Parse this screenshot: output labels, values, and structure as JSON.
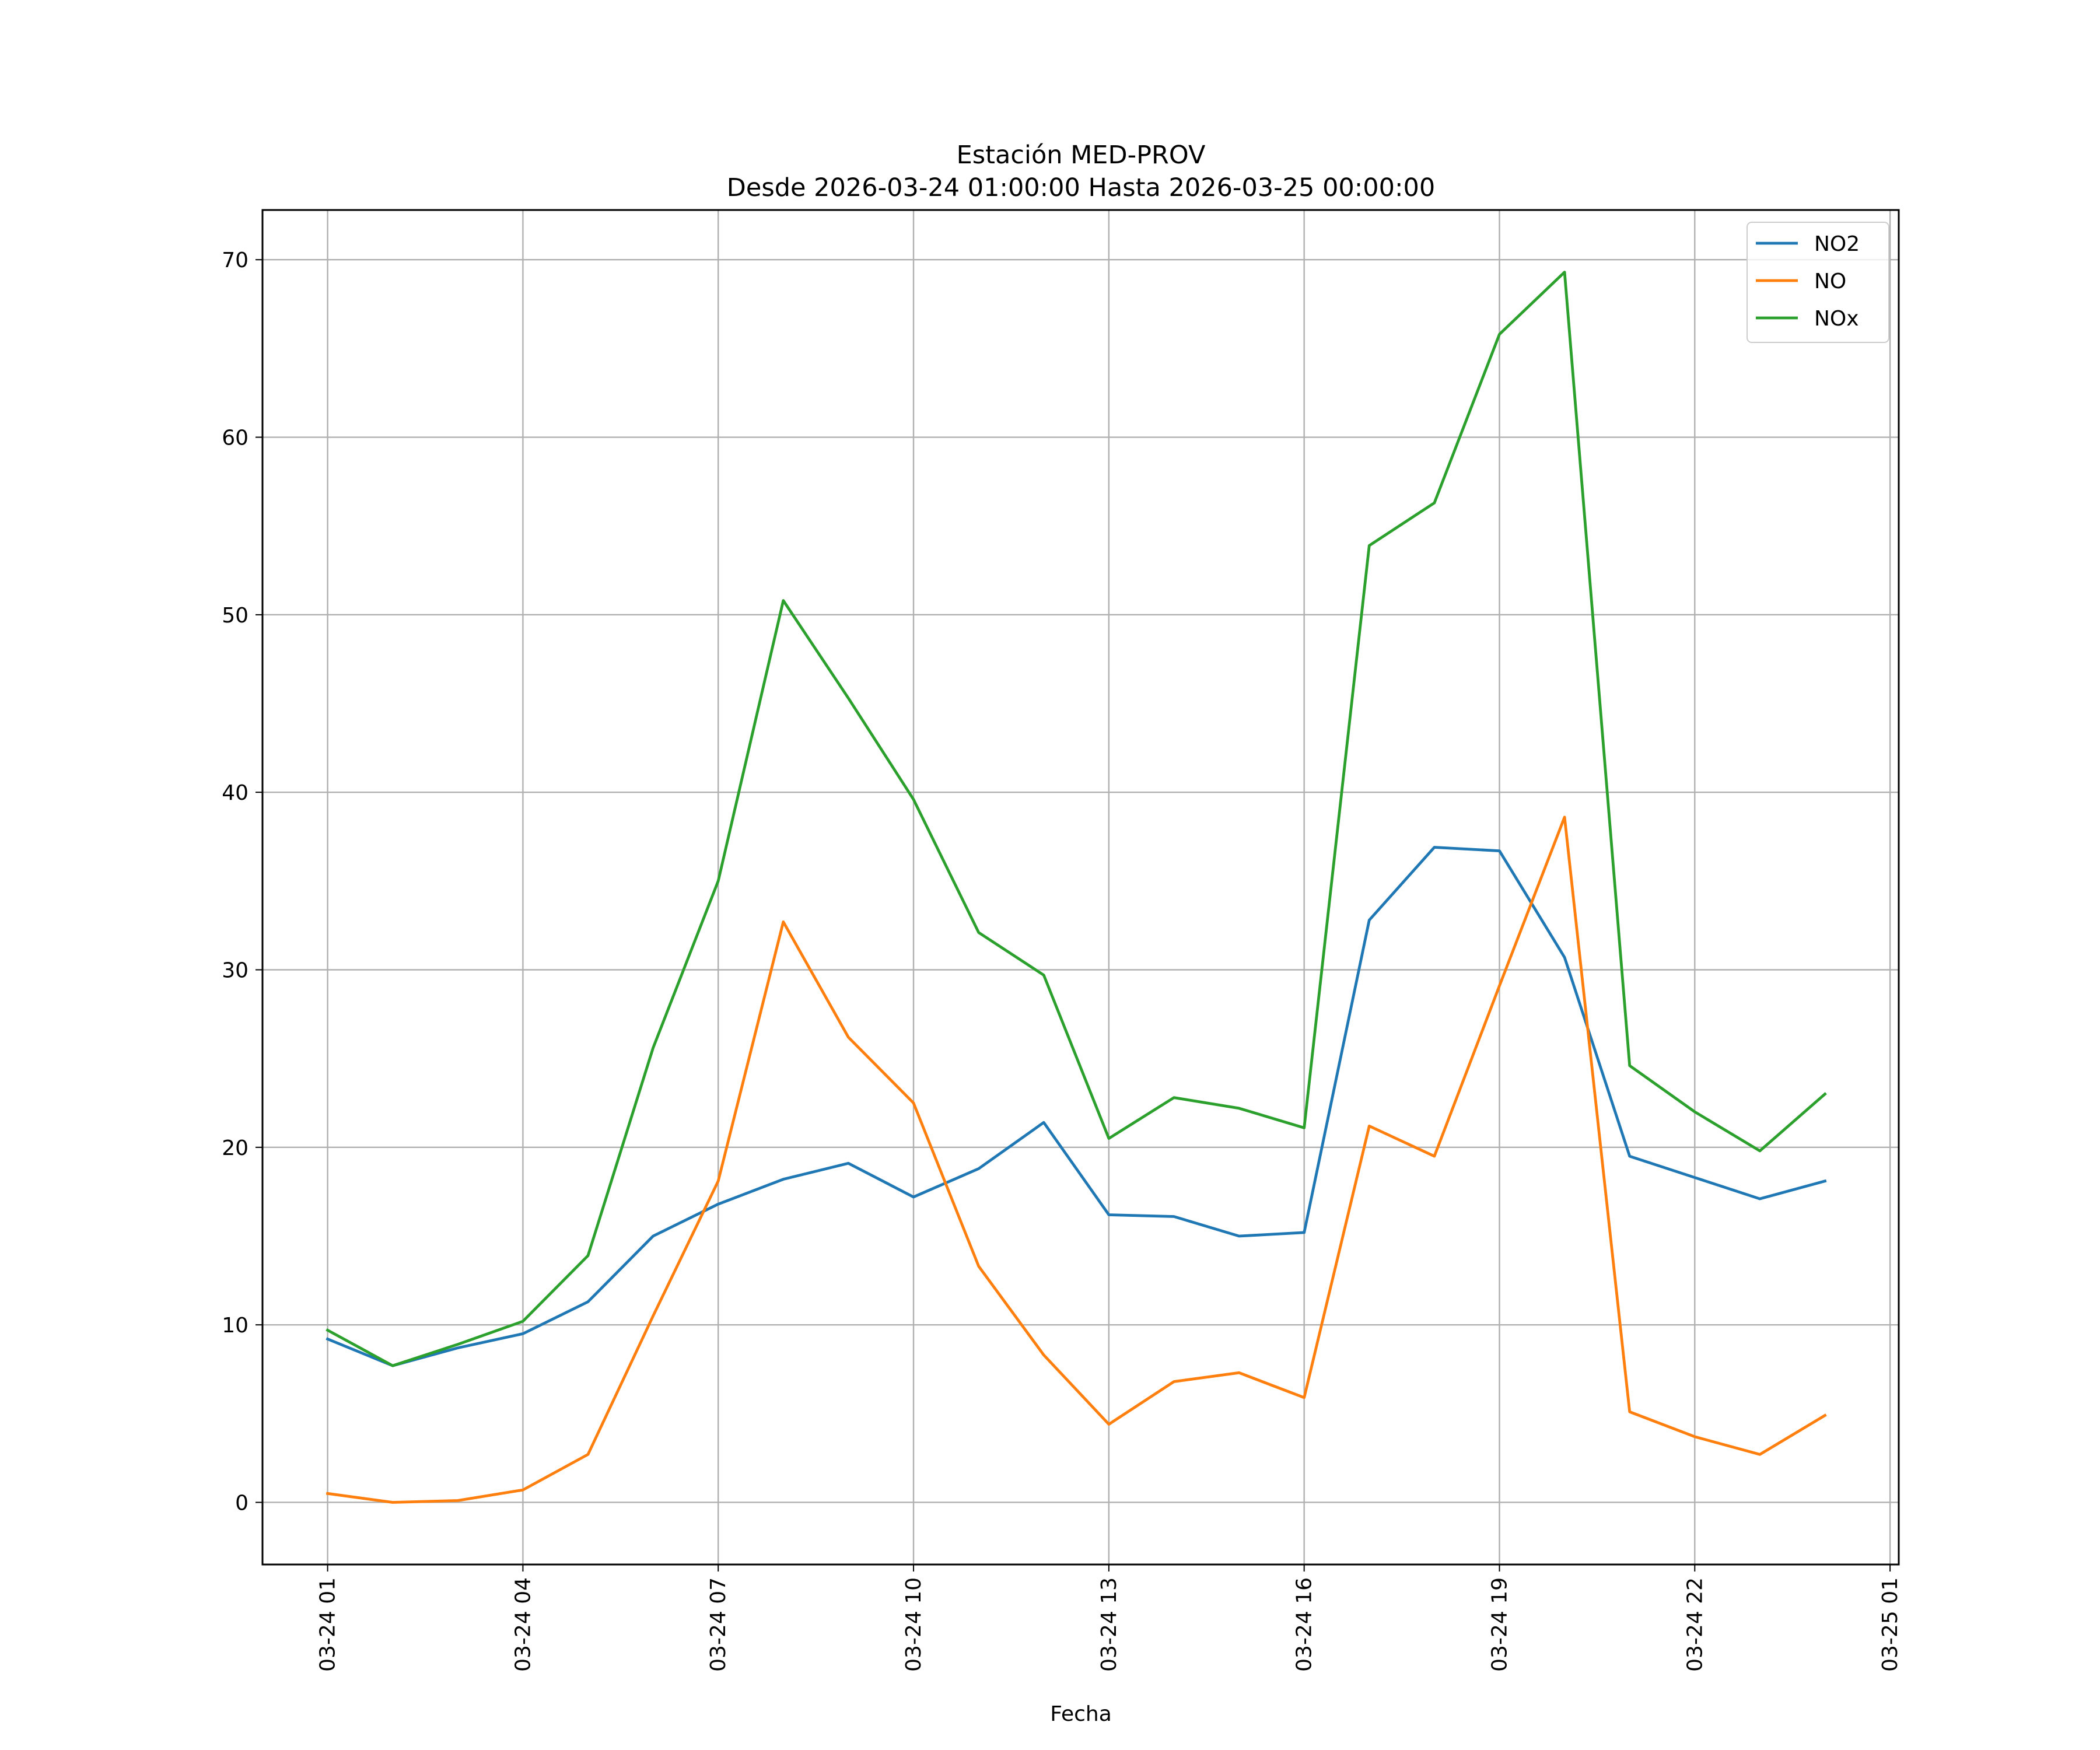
{
  "chart_data": {
    "type": "line",
    "title": "Estación MED-PROV",
    "subtitle": "Desde 2026-03-24 01:00:00 Hasta 2026-03-25 00:00:00",
    "xlabel": "Fecha",
    "ylabel": "",
    "x": [
      "03-24 01",
      "03-24 02",
      "03-24 03",
      "03-24 04",
      "03-24 05",
      "03-24 06",
      "03-24 07",
      "03-24 08",
      "03-24 09",
      "03-24 10",
      "03-24 11",
      "03-24 12",
      "03-24 13",
      "03-24 14",
      "03-24 15",
      "03-24 16",
      "03-24 17",
      "03-24 18",
      "03-24 19",
      "03-24 20",
      "03-24 21",
      "03-24 22",
      "03-24 23",
      "03-25 00"
    ],
    "x_ticks": [
      "03-24 01",
      "03-24 04",
      "03-24 07",
      "03-24 10",
      "03-24 13",
      "03-24 16",
      "03-24 19",
      "03-24 22",
      "03-25 01"
    ],
    "xlim": [
      "03-24 00:00",
      "03-25 01:08"
    ],
    "ylim": [
      -3.5,
      72.8
    ],
    "y_ticks": [
      0,
      10,
      20,
      30,
      40,
      50,
      60,
      70
    ],
    "grid": true,
    "legend_position": "top-right",
    "series": [
      {
        "name": "NO2",
        "color": "#1f77b4",
        "values": [
          9.2,
          7.7,
          8.7,
          9.5,
          11.3,
          15.0,
          16.8,
          18.2,
          19.1,
          17.2,
          18.8,
          21.4,
          16.2,
          16.1,
          15.0,
          15.2,
          32.8,
          36.9,
          36.7,
          30.7,
          19.5,
          18.3,
          17.1,
          18.1
        ]
      },
      {
        "name": "NO",
        "color": "#ff7f0e",
        "values": [
          0.5,
          0.0,
          0.1,
          0.7,
          2.7,
          10.5,
          18.1,
          32.7,
          26.2,
          22.5,
          13.3,
          8.3,
          4.4,
          6.8,
          7.3,
          5.9,
          21.2,
          19.5,
          29.1,
          38.6,
          5.1,
          3.7,
          2.7,
          4.9
        ]
      },
      {
        "name": "NOx",
        "color": "#2ca02c",
        "values": [
          9.7,
          7.7,
          8.9,
          10.2,
          13.9,
          25.6,
          35.0,
          50.8,
          45.3,
          39.6,
          32.1,
          29.7,
          20.5,
          22.8,
          22.2,
          21.1,
          53.9,
          56.3,
          65.8,
          69.3,
          24.6,
          22.0,
          19.8,
          23.0
        ]
      }
    ]
  }
}
